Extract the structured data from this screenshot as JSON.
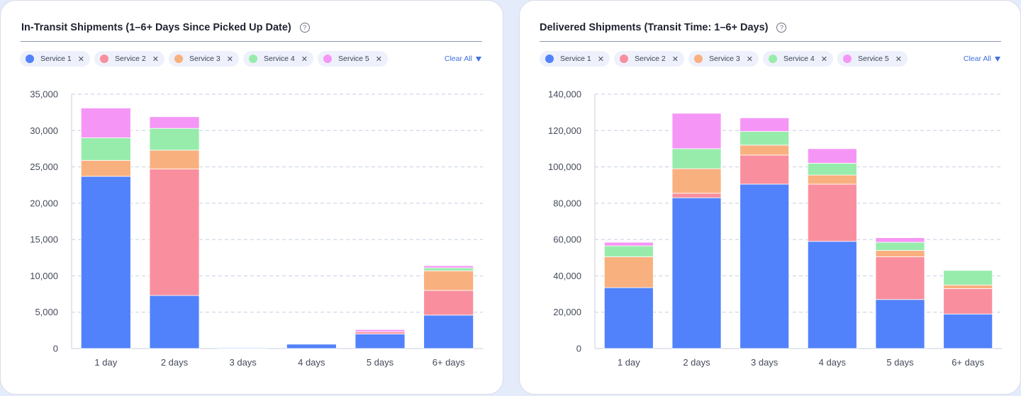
{
  "colors": {
    "Service 1": "#5282fb",
    "Service 2": "#f98f9e",
    "Service 3": "#f9b07f",
    "Service 4": "#97ecac",
    "Service 5": "#f596f6",
    "accent": "#3f6fe0"
  },
  "left": {
    "title": "In-Transit Shipments (1–6+ Days Since Picked Up Date)",
    "help_icon": "?",
    "clear_all": "Clear All",
    "chips": [
      {
        "label": "Service 1",
        "x": "✕"
      },
      {
        "label": "Service 2",
        "x": "✕"
      },
      {
        "label": "Service 3",
        "x": "✕"
      },
      {
        "label": "Service 4",
        "x": "✕"
      },
      {
        "label": "Service 5",
        "x": "✕"
      }
    ]
  },
  "right": {
    "title": "Delivered Shipments (Transit Time: 1–6+ Days)",
    "help_icon": "?",
    "clear_all": "Clear All",
    "chips": [
      {
        "label": "Service 1",
        "x": "✕"
      },
      {
        "label": "Service 2",
        "x": "✕"
      },
      {
        "label": "Service 3",
        "x": "✕"
      },
      {
        "label": "Service 4",
        "x": "✕"
      },
      {
        "label": "Service 5",
        "x": "✕"
      }
    ]
  },
  "chart_data": [
    {
      "type": "bar",
      "stacked": true,
      "title": "In-Transit Shipments (1–6+ Days Since Picked Up Date)",
      "categories": [
        "1 day",
        "2 days",
        "3 days",
        "4 days",
        "5 days",
        "6+ days"
      ],
      "ylim": [
        0,
        35000
      ],
      "yticks": [
        0,
        5000,
        10000,
        15000,
        20000,
        25000,
        30000,
        35000
      ],
      "ytick_labels": [
        "0",
        "5,000",
        "10,000",
        "15,000",
        "20,000",
        "25,000",
        "30,000",
        "35,000"
      ],
      "grid": true,
      "series": [
        {
          "name": "Service 1",
          "values": [
            23700,
            7300,
            100,
            600,
            2000,
            4600
          ]
        },
        {
          "name": "Service 2",
          "values": [
            0,
            17400,
            0,
            0,
            300,
            3400
          ]
        },
        {
          "name": "Service 3",
          "values": [
            2200,
            2600,
            0,
            0,
            0,
            2700
          ]
        },
        {
          "name": "Service 4",
          "values": [
            3100,
            3000,
            0,
            0,
            0,
            400
          ]
        },
        {
          "name": "Service 5",
          "values": [
            4100,
            1600,
            0,
            0,
            300,
            300
          ]
        }
      ]
    },
    {
      "type": "bar",
      "stacked": true,
      "title": "Delivered Shipments (Transit Time: 1–6+ Days)",
      "categories": [
        "1 day",
        "2 days",
        "3 days",
        "4 days",
        "5 days",
        "6+ days"
      ],
      "ylim": [
        0,
        140000
      ],
      "yticks": [
        0,
        20000,
        40000,
        60000,
        80000,
        100000,
        120000,
        140000
      ],
      "ytick_labels": [
        "0",
        "20,000",
        "40,000",
        "60,000",
        "80,000",
        "100,000",
        "120,000",
        "140,000"
      ],
      "grid": true,
      "series": [
        {
          "name": "Service 1",
          "values": [
            33500,
            83000,
            90500,
            59000,
            27000,
            19000
          ]
        },
        {
          "name": "Service 2",
          "values": [
            0,
            2500,
            16000,
            31500,
            23500,
            14000
          ]
        },
        {
          "name": "Service 3",
          "values": [
            17000,
            13500,
            5500,
            5000,
            3500,
            2000
          ]
        },
        {
          "name": "Service 4",
          "values": [
            6000,
            11000,
            7500,
            6500,
            4500,
            8000
          ]
        },
        {
          "name": "Service 5",
          "values": [
            2000,
            19500,
            7500,
            8000,
            2500,
            0
          ]
        }
      ]
    }
  ]
}
